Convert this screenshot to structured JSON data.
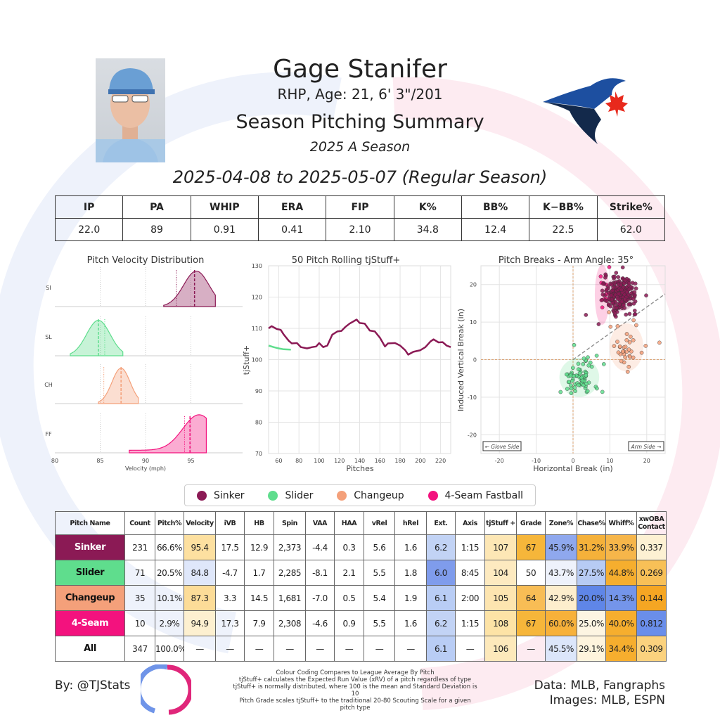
{
  "header": {
    "name": "Gage Stanifer",
    "bio": "RHP, Age: 21, 6' 3\"/201",
    "title": "Season Pitching Summary",
    "season": "2025 A Season",
    "date_range": "2025-04-08 to 2025-05-07 (Regular Season)"
  },
  "stats": {
    "headers": [
      "IP",
      "PA",
      "WHIP",
      "ERA",
      "FIP",
      "K%",
      "BB%",
      "K−BB%",
      "Strike%"
    ],
    "values": [
      "22.0",
      "89",
      "0.91",
      "0.41",
      "2.10",
      "34.8",
      "12.4",
      "22.5",
      "62.0"
    ]
  },
  "colors": {
    "Sinker": "#8b1a55",
    "Slider": "#5fdd8d",
    "Changeup": "#f4a07a",
    "4-Seam Fastball": "#f3127e"
  },
  "chart_data": [
    {
      "type": "area",
      "title": "Pitch Velocity Distribution",
      "xlabel": "Velocity (mph)",
      "xlim": [
        80,
        100
      ],
      "xticks": [
        "80",
        "85",
        "90",
        "95"
      ],
      "rows": [
        {
          "label": "SI",
          "pitch": "Sinker",
          "peak": 95.6,
          "sd": 1.4,
          "min": 92.0,
          "max": 97.7,
          "avg": 95.4,
          "league": 93.4
        },
        {
          "label": "SL",
          "pitch": "Slider",
          "peak": 84.8,
          "sd": 1.3,
          "min": 81.7,
          "max": 87.5,
          "avg": 84.8,
          "league": 85.5
        },
        {
          "label": "CH",
          "pitch": "Changeup",
          "peak": 87.3,
          "sd": 1.0,
          "min": 84.8,
          "max": 89.2,
          "avg": 87.3,
          "league": 85.4
        },
        {
          "label": "FF",
          "pitch": "4-Seam Fastball",
          "peak": 95.9,
          "sd": 1.8,
          "min": 88.2,
          "max": 96.7,
          "avg": 94.9,
          "league": 94.3
        }
      ]
    },
    {
      "type": "line",
      "title": "50 Pitch Rolling tjStuff+",
      "xlabel": "Pitches",
      "ylabel": "tjStuff+",
      "xlim": [
        50,
        230
      ],
      "ylim": [
        70,
        130
      ],
      "xticks": [
        "60",
        "80",
        "100",
        "120",
        "140",
        "160",
        "180",
        "200",
        "220"
      ],
      "yticks": [
        "70",
        "80",
        "90",
        "100",
        "110",
        "120",
        "130"
      ],
      "series": [
        {
          "name": "Sinker",
          "x": [
            50,
            53,
            58,
            62,
            65,
            70,
            73,
            78,
            82,
            88,
            93,
            97,
            100,
            104,
            108,
            113,
            118,
            122,
            126,
            130,
            137,
            140,
            145,
            150,
            155,
            160,
            165,
            168,
            175,
            180,
            185,
            188,
            193,
            200,
            205,
            210,
            213,
            218,
            222,
            226,
            230
          ],
          "y": [
            110,
            110.7,
            109.8,
            109.5,
            108,
            106,
            105.2,
            105.3,
            104,
            103.6,
            104,
            104.2,
            105.3,
            104,
            104.5,
            108,
            109,
            109.2,
            110.5,
            111.5,
            112.8,
            111.7,
            111.5,
            109.3,
            109,
            107,
            104.2,
            105.2,
            105.3,
            104.5,
            103,
            101.6,
            102.5,
            103,
            104,
            105.8,
            106.5,
            105.5,
            105.6,
            104.5,
            104
          ]
        },
        {
          "name": "Slider",
          "x": [
            50,
            55,
            60,
            65,
            72
          ],
          "y": [
            104.5,
            104,
            103.6,
            103.3,
            103.2
          ]
        }
      ]
    },
    {
      "type": "scatter",
      "title": "Pitch Breaks - Arm Angle: 35°",
      "xlabel": "Horizontal Break (in)",
      "ylabel": "Induced Vertical Break (in)",
      "xlim": [
        -25,
        25
      ],
      "ylim": [
        -25,
        25
      ],
      "arm_angle": 35,
      "xticks": [
        "-20",
        "-10",
        "0",
        "10",
        "20"
      ],
      "yticks": [
        "-20",
        "-10",
        "0",
        "10",
        "20"
      ],
      "annotations": [
        "← Glove Side",
        "Arm Side →"
      ],
      "clusters": [
        {
          "pitch": "Changeup",
          "n": 35,
          "hb": 14.5,
          "ivb": 3.3,
          "sdx": 2.3,
          "sdy": 3.2
        },
        {
          "pitch": "Slider",
          "n": 71,
          "hb": 1.7,
          "ivb": -4.7,
          "sdx": 2.7,
          "sdy": 2.6
        },
        {
          "pitch": "4-Seam Fastball",
          "n": 10,
          "hb": 7.9,
          "ivb": 17.3,
          "sdx": 1.0,
          "sdy": 4.0
        },
        {
          "pitch": "Sinker",
          "n": 231,
          "hb": 12.9,
          "ivb": 17.5,
          "sdx": 2.2,
          "sdy": 2.3
        }
      ]
    }
  ],
  "legend": [
    "Sinker",
    "Slider",
    "Changeup",
    "4-Seam Fastball"
  ],
  "pitch_table": {
    "headers": [
      "Pitch Name",
      "Count",
      "Pitch%",
      "Velocity",
      "iVB",
      "HB",
      "Spin",
      "VAA",
      "HAA",
      "vRel",
      "hRel",
      "Ext.",
      "Axis",
      "tjStuff +",
      "Grade",
      "Zone%",
      "Chase%",
      "Whiff%",
      "xwOBA Contact"
    ],
    "rows": [
      {
        "name": "Sinker",
        "bg": "#8b1a55",
        "fg": "#ffffff",
        "cells": [
          "231",
          "66.6%",
          "95.4",
          "17.5",
          "12.9",
          "2,373",
          "-4.4",
          "0.3",
          "5.6",
          "1.6",
          "6.2",
          "1:15",
          "107",
          "67",
          "45.9%",
          "31.2%",
          "33.9%",
          "0.337"
        ],
        "cell_colors": [
          "",
          "",
          "#fde0a0",
          "",
          "",
          "",
          "",
          "",
          "",
          "",
          "#c2d3f5",
          "",
          "#fde7b5",
          "#f6b63a",
          "#8fa8ee",
          "#f5b13a",
          "#f6b64a",
          "#fdf1d3"
        ]
      },
      {
        "name": "Slider",
        "bg": "#5fdd8d",
        "fg": "#111111",
        "cells": [
          "71",
          "20.5%",
          "84.8",
          "-4.7",
          "1.7",
          "2,285",
          "-8.1",
          "2.1",
          "5.5",
          "1.8",
          "6.0",
          "8:45",
          "104",
          "50",
          "43.7%",
          "27.5%",
          "44.8%",
          "0.269"
        ],
        "cell_colors": [
          "",
          "",
          "#dfe7fa",
          "",
          "",
          "",
          "",
          "",
          "",
          "",
          "#7f9cec",
          "",
          "#fdeac0",
          "",
          "#eef2fb",
          "#b7cbf4",
          "#f6ae2e",
          "#f8c057"
        ]
      },
      {
        "name": "Changeup",
        "bg": "#f4a07a",
        "fg": "#111111",
        "cells": [
          "35",
          "10.1%",
          "87.3",
          "3.3",
          "14.5",
          "1,681",
          "-7.0",
          "0.5",
          "5.4",
          "1.9",
          "6.1",
          "2:00",
          "105",
          "64",
          "42.9%",
          "20.0%",
          "14.3%",
          "0.144"
        ],
        "cell_colors": [
          "",
          "",
          "#fcdc98",
          "",
          "",
          "",
          "",
          "",
          "",
          "",
          "#b9cdf5",
          "",
          "#fde5b0",
          "#f8bd55",
          "#fdeecd",
          "#5f86e8",
          "#7495ea",
          "#f5a623"
        ]
      },
      {
        "name": "4-Seam",
        "bg": "#f3127e",
        "fg": "#ffffff",
        "cells": [
          "10",
          "2.9%",
          "94.9",
          "17.3",
          "7.9",
          "2,308",
          "-4.6",
          "0.9",
          "5.5",
          "1.6",
          "6.2",
          "1:15",
          "108",
          "67",
          "60.0%",
          "25.0%",
          "40.0%",
          "0.812"
        ],
        "cell_colors": [
          "",
          "",
          "#fdf0d0",
          "",
          "",
          "",
          "",
          "",
          "",
          "",
          "#c2d3f5",
          "",
          "#fde3a6",
          "#f6b63a",
          "#f7b13a",
          "#fdf5e2",
          "#f6ae2e",
          "#6a8eea"
        ]
      },
      {
        "name": "All",
        "bg": "#ffffff",
        "fg": "#111111",
        "cells": [
          "347",
          "100.0%",
          "—",
          "—",
          "—",
          "—",
          "—",
          "—",
          "—",
          "—",
          "6.1",
          "—",
          "106",
          "—",
          "45.5%",
          "29.1%",
          "34.4%",
          "0.309"
        ],
        "cell_colors": [
          "",
          "",
          "",
          "",
          "",
          "",
          "",
          "",
          "",
          "",
          "#b9cdf5",
          "",
          "#fde9bb",
          "",
          "#dce6fa",
          "#fef4dd",
          "#f6ae2e",
          "#fbd27e"
        ]
      }
    ]
  },
  "footer": {
    "by": "By: @TJStats",
    "notes": [
      "Colour Coding Compares to League Average By Pitch",
      "tjStuff+ calculates the Expected Run Value (xRV) of a pitch regardless of type",
      "tjStuff+ is normally distributed, where 100 is the mean and Standard Deviation is 10",
      "Pitch Grade scales tjStuff+ to the traditional 20-80 Scouting Scale for a given pitch type"
    ],
    "data_source": "Data: MLB, Fangraphs",
    "image_source": "Images: MLB, ESPN"
  }
}
